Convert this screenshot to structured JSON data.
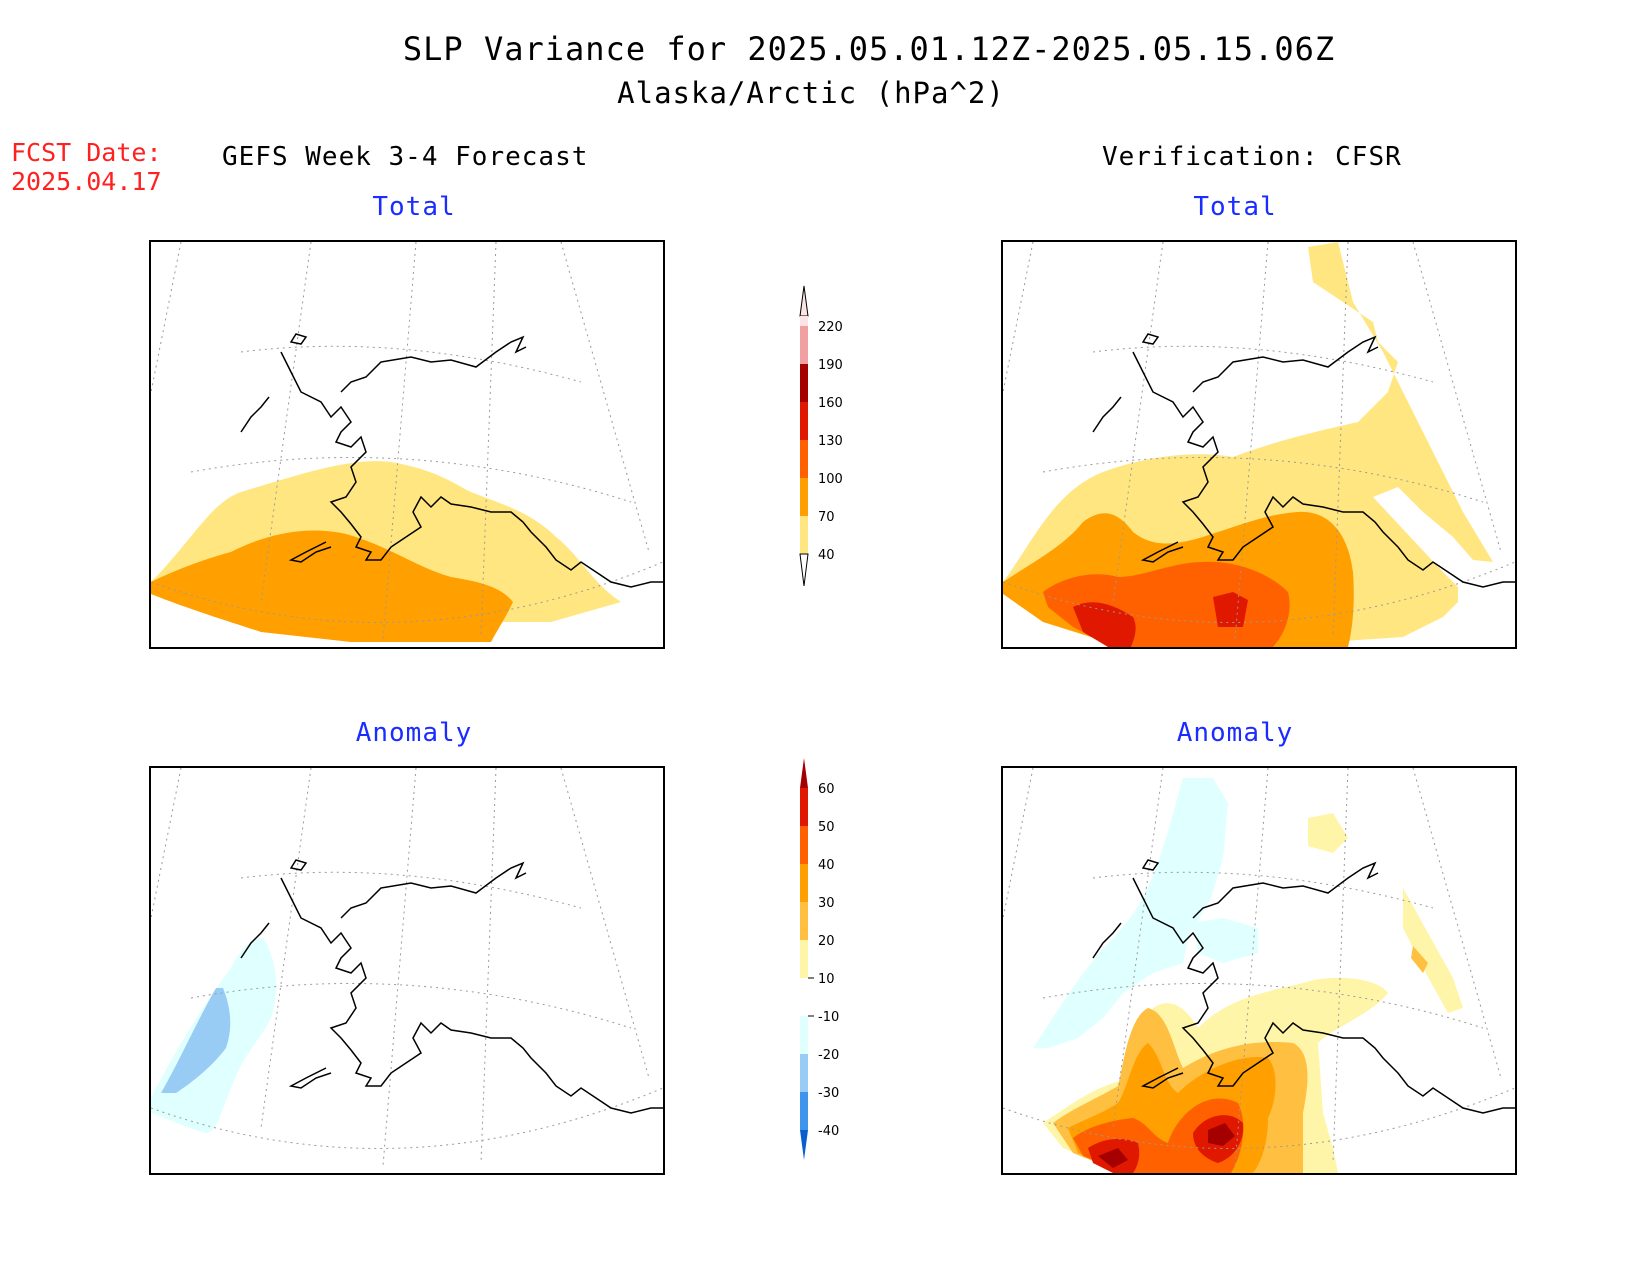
{
  "header": {
    "title": "SLP Variance for 2025.05.01.12Z-2025.05.15.06Z",
    "subtitle": "Alaska/Arctic (hPa^2)",
    "fcst_date_label": "FCST Date:",
    "fcst_date_value": "2025.04.17"
  },
  "columns": {
    "left": "GEFS Week 3-4 Forecast",
    "right": "Verification: CFSR"
  },
  "panels": {
    "forecast_total": "Total",
    "verification_total": "Total",
    "forecast_anomaly": "Anomaly",
    "verification_anomaly": "Anomaly"
  },
  "colorbar_total": {
    "levels": [
      "40",
      "70",
      "100",
      "130",
      "160",
      "190",
      "220"
    ],
    "colors": [
      "#ffe680",
      "#ff9f00",
      "#ff6100",
      "#e11800",
      "#a50000",
      "#f0a0a0",
      "#fde4e4"
    ]
  },
  "colorbar_anomaly": {
    "levels": [
      "60",
      "50",
      "40",
      "30",
      "20",
      "10",
      "-10",
      "-20",
      "-30",
      "-40"
    ],
    "colors_top_down": [
      "#a50000",
      "#e11800",
      "#ff6100",
      "#ff9f00",
      "#ffbf40",
      "#fff5a8",
      "#ffffff",
      "#e0ffff",
      "#99ccf5",
      "#3d96ec",
      "#0a5fcf"
    ]
  }
}
